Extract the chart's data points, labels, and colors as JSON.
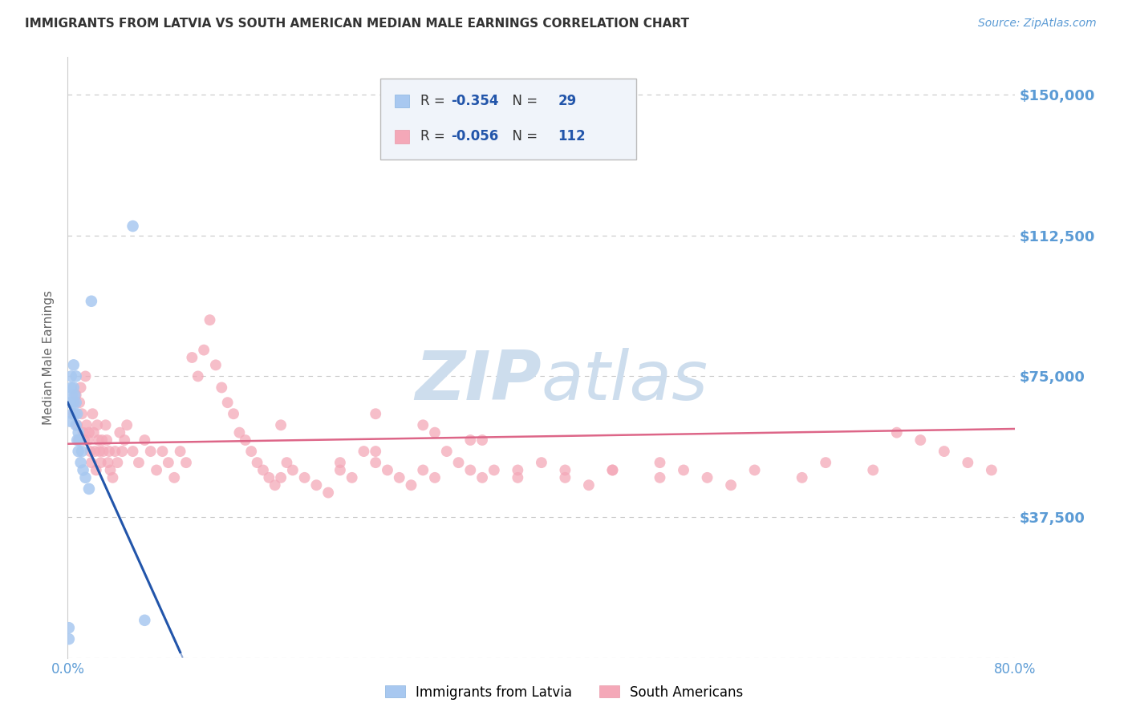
{
  "title": "IMMIGRANTS FROM LATVIA VS SOUTH AMERICAN MEDIAN MALE EARNINGS CORRELATION CHART",
  "source": "Source: ZipAtlas.com",
  "ylabel": "Median Male Earnings",
  "xlim": [
    0.0,
    0.8
  ],
  "ylim": [
    0,
    160000
  ],
  "yticks": [
    0,
    37500,
    75000,
    112500,
    150000
  ],
  "ytick_labels": [
    "",
    "$37,500",
    "$75,000",
    "$112,500",
    "$150,000"
  ],
  "xticks": [
    0.0,
    0.1,
    0.2,
    0.3,
    0.4,
    0.5,
    0.6,
    0.7,
    0.8
  ],
  "xtick_labels": [
    "0.0%",
    "",
    "",
    "",
    "",
    "",
    "",
    "",
    "80.0%"
  ],
  "background_color": "#ffffff",
  "grid_color": "#c8c8c8",
  "title_color": "#333333",
  "axis_label_color": "#5b9bd5",
  "latvia_fill_color": "#a8c8f0",
  "sa_fill_color": "#f4a8b8",
  "latvia_line_color": "#2255aa",
  "sa_line_color": "#dd6688",
  "legend_box_edge": "#bbbbbb",
  "legend_box_face": "#f0f4fa",
  "watermark_color": "#cddded",
  "R_latvia": -0.354,
  "N_latvia": 29,
  "R_sa": -0.056,
  "N_sa": 112,
  "latvia_x": [
    0.001,
    0.001,
    0.002,
    0.002,
    0.003,
    0.003,
    0.004,
    0.004,
    0.005,
    0.005,
    0.005,
    0.006,
    0.006,
    0.007,
    0.007,
    0.007,
    0.008,
    0.008,
    0.009,
    0.009,
    0.01,
    0.011,
    0.012,
    0.013,
    0.015,
    0.018,
    0.02,
    0.055,
    0.065
  ],
  "latvia_y": [
    5000,
    8000,
    63000,
    68000,
    72000,
    75000,
    70000,
    65000,
    68000,
    72000,
    78000,
    65000,
    70000,
    68000,
    62000,
    75000,
    58000,
    65000,
    60000,
    55000,
    58000,
    52000,
    55000,
    50000,
    48000,
    45000,
    95000,
    115000,
    10000
  ],
  "sa_x": [
    0.005,
    0.007,
    0.008,
    0.009,
    0.01,
    0.011,
    0.012,
    0.013,
    0.014,
    0.015,
    0.016,
    0.017,
    0.018,
    0.019,
    0.02,
    0.021,
    0.022,
    0.023,
    0.024,
    0.025,
    0.026,
    0.027,
    0.028,
    0.029,
    0.03,
    0.032,
    0.033,
    0.034,
    0.035,
    0.036,
    0.038,
    0.04,
    0.042,
    0.044,
    0.046,
    0.048,
    0.05,
    0.055,
    0.06,
    0.065,
    0.07,
    0.075,
    0.08,
    0.085,
    0.09,
    0.095,
    0.1,
    0.105,
    0.11,
    0.115,
    0.12,
    0.125,
    0.13,
    0.135,
    0.14,
    0.145,
    0.15,
    0.155,
    0.16,
    0.165,
    0.17,
    0.175,
    0.18,
    0.185,
    0.19,
    0.2,
    0.21,
    0.22,
    0.23,
    0.24,
    0.25,
    0.26,
    0.27,
    0.28,
    0.29,
    0.3,
    0.31,
    0.32,
    0.33,
    0.34,
    0.35,
    0.36,
    0.38,
    0.4,
    0.42,
    0.44,
    0.46,
    0.5,
    0.52,
    0.54,
    0.56,
    0.58,
    0.62,
    0.64,
    0.68,
    0.7,
    0.72,
    0.74,
    0.76,
    0.78,
    0.3,
    0.35,
    0.26,
    0.23,
    0.18,
    0.26,
    0.31,
    0.34,
    0.38,
    0.42,
    0.46,
    0.5
  ],
  "sa_y": [
    65000,
    70000,
    62000,
    58000,
    68000,
    72000,
    65000,
    60000,
    58000,
    75000,
    62000,
    58000,
    60000,
    55000,
    52000,
    65000,
    60000,
    55000,
    50000,
    62000,
    58000,
    55000,
    52000,
    58000,
    55000,
    62000,
    58000,
    52000,
    55000,
    50000,
    48000,
    55000,
    52000,
    60000,
    55000,
    58000,
    62000,
    55000,
    52000,
    58000,
    55000,
    50000,
    55000,
    52000,
    48000,
    55000,
    52000,
    80000,
    75000,
    82000,
    90000,
    78000,
    72000,
    68000,
    65000,
    60000,
    58000,
    55000,
    52000,
    50000,
    48000,
    46000,
    48000,
    52000,
    50000,
    48000,
    46000,
    44000,
    50000,
    48000,
    55000,
    52000,
    50000,
    48000,
    46000,
    50000,
    48000,
    55000,
    52000,
    50000,
    48000,
    50000,
    48000,
    52000,
    50000,
    46000,
    50000,
    52000,
    50000,
    48000,
    46000,
    50000,
    48000,
    52000,
    50000,
    60000,
    58000,
    55000,
    52000,
    50000,
    62000,
    58000,
    55000,
    52000,
    62000,
    65000,
    60000,
    58000,
    50000,
    48000,
    50000,
    48000
  ]
}
